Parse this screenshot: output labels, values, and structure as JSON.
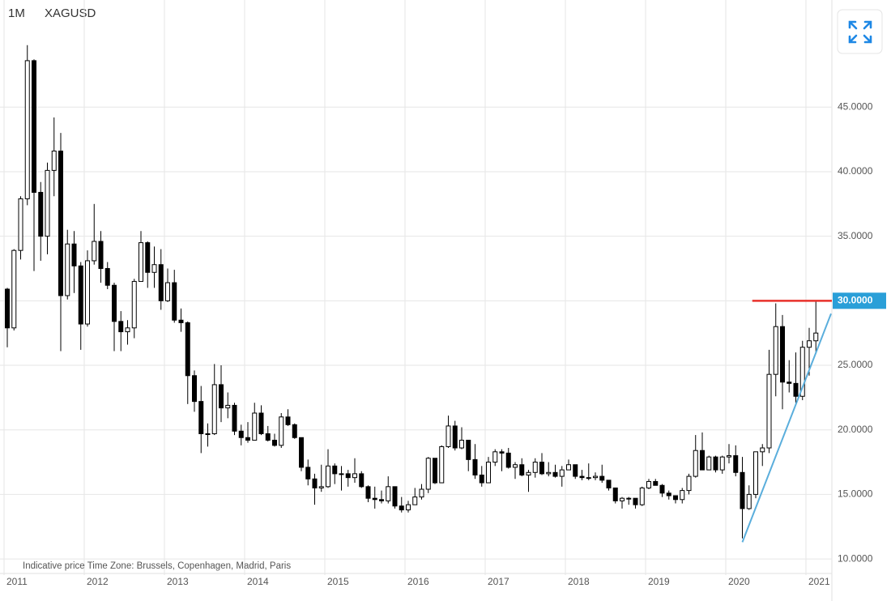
{
  "chart_data": {
    "type": "candlestick",
    "title": "1M",
    "symbol": "XAGUSD",
    "footnote": "Indicative price    Time Zone: Brussels, Copenhagen, Madrid, Paris",
    "ylim": [
      8.75,
      53.3
    ],
    "yticks": [
      {
        "value": 10,
        "label": "10.0000"
      },
      {
        "value": 15,
        "label": "15.0000"
      },
      {
        "value": 20,
        "label": "20.0000"
      },
      {
        "value": 25,
        "label": "25.0000"
      },
      {
        "value": 30,
        "label": "30.0000"
      },
      {
        "value": 35,
        "label": "35.0000"
      },
      {
        "value": 40,
        "label": "40.0000"
      },
      {
        "value": 45,
        "label": "45.0000"
      }
    ],
    "xticks": [
      2011,
      2012,
      2013,
      2014,
      2015,
      2016,
      2017,
      2018,
      2019,
      2020,
      2021
    ],
    "grid": true,
    "up_color": "#ffffff",
    "down_color": "#000000",
    "open": [
      30.9,
      27.9,
      33.9,
      37.9,
      48.6,
      38.4,
      35.0,
      40.1,
      41.6,
      30.4,
      34.4,
      32.7,
      28.2,
      33.1,
      34.6,
      32.5,
      31.2,
      28.4,
      27.6,
      27.9,
      31.5,
      34.5,
      32.2,
      32.8,
      30.0,
      31.4,
      28.5,
      28.3,
      24.2,
      22.2,
      19.7,
      19.7,
      23.5,
      21.7,
      21.9,
      19.9,
      19.4,
      19.2,
      21.3,
      19.7,
      19.2,
      18.8,
      21.0,
      20.4,
      19.4,
      17.1,
      16.2,
      15.5,
      15.6,
      17.2,
      16.6,
      16.6,
      16.3,
      16.6,
      15.6,
      14.7,
      14.6,
      14.5,
      15.6,
      14.1,
      13.8,
      14.2,
      14.8,
      15.4,
      17.8,
      15.9,
      18.7,
      20.3,
      18.6,
      19.2,
      17.7,
      16.5,
      15.9,
      17.5,
      18.3,
      18.2,
      17.1,
      17.3,
      16.5,
      16.7,
      17.5,
      16.6,
      16.7,
      16.4,
      16.9,
      17.3,
      16.4,
      16.3,
      16.3,
      16.4,
      16.1,
      15.5,
      14.5,
      14.7,
      14.7,
      14.2,
      15.5,
      16.0,
      15.7,
      15.1,
      14.9,
      14.6,
      15.3,
      16.4,
      18.4,
      16.9,
      17.9,
      16.9,
      17.9,
      18.0,
      16.7,
      13.9,
      15.0,
      18.3,
      18.6,
      24.3,
      28.0,
      23.7,
      23.6,
      22.6,
      26.4,
      26.9
    ],
    "high": [
      31.0,
      34.0,
      38.1,
      49.8,
      48.7,
      39.2,
      40.7,
      44.2,
      43.0,
      35.5,
      35.4,
      33.0,
      33.9,
      37.5,
      35.4,
      33.0,
      31.4,
      29.2,
      28.5,
      31.7,
      35.4,
      34.6,
      34.2,
      34.0,
      32.5,
      32.4,
      29.4,
      28.4,
      24.6,
      23.4,
      20.5,
      25.1,
      25.0,
      22.9,
      22.1,
      20.4,
      20.6,
      22.1,
      21.9,
      20.3,
      19.7,
      21.3,
      21.6,
      20.5,
      19.4,
      17.7,
      16.6,
      17.3,
      18.5,
      17.4,
      17.2,
      16.9,
      17.8,
      16.8,
      15.7,
      15.6,
      15.3,
      16.4,
      15.6,
      14.8,
      14.5,
      15.5,
      15.8,
      17.9,
      17.8,
      18.8,
      21.1,
      20.7,
      20.2,
      19.2,
      18.9,
      17.2,
      17.9,
      18.5,
      18.5,
      18.6,
      17.5,
      17.8,
      16.9,
      17.8,
      18.2,
      17.5,
      17.3,
      17.2,
      17.7,
      17.3,
      16.9,
      17.4,
      16.7,
      17.3,
      16.1,
      15.5,
      14.8,
      14.8,
      14.7,
      15.6,
      16.2,
      16.2,
      15.8,
      15.3,
      14.9,
      15.5,
      16.6,
      19.6,
      19.8,
      18.0,
      18.0,
      18.0,
      18.9,
      18.8,
      17.9,
      15.7,
      18.3,
      18.9,
      26.2,
      29.8,
      28.9,
      25.4,
      26.0,
      26.9,
      27.9,
      30.0
    ],
    "low": [
      26.4,
      27.7,
      33.2,
      37.4,
      32.3,
      33.1,
      33.6,
      38.1,
      26.1,
      30.1,
      30.6,
      26.2,
      28.0,
      32.8,
      31.4,
      30.9,
      26.1,
      26.1,
      26.6,
      27.1,
      31.5,
      31.0,
      31.0,
      29.3,
      29.9,
      28.3,
      27.6,
      22.0,
      21.4,
      18.2,
      18.7,
      19.6,
      20.6,
      20.9,
      19.6,
      18.8,
      19.0,
      19.2,
      19.6,
      19.1,
      18.7,
      18.6,
      20.3,
      19.3,
      16.8,
      15.7,
      14.2,
      15.2,
      15.5,
      15.8,
      15.3,
      15.6,
      15.9,
      15.5,
      14.4,
      13.9,
      14.3,
      14.3,
      13.9,
      13.6,
      13.6,
      14.2,
      14.6,
      15.1,
      15.8,
      15.9,
      18.6,
      18.4,
      18.5,
      16.8,
      16.2,
      15.6,
      15.9,
      17.2,
      16.8,
      17.0,
      16.2,
      16.4,
      15.2,
      16.3,
      16.5,
      16.4,
      16.3,
      15.6,
      16.9,
      16.2,
      16.1,
      16.1,
      16.1,
      15.9,
      15.3,
      14.3,
      13.9,
      14.2,
      13.9,
      14.1,
      15.4,
      15.7,
      14.8,
      14.6,
      14.3,
      14.3,
      15.0,
      16.3,
      16.9,
      16.9,
      16.7,
      16.6,
      17.4,
      16.4,
      11.6,
      13.8,
      14.7,
      17.2,
      18.2,
      22.6,
      21.6,
      22.9,
      21.9,
      22.3,
      24.2,
      25.9
    ],
    "close": [
      27.9,
      33.9,
      37.9,
      48.6,
      38.4,
      35.0,
      40.1,
      41.6,
      30.4,
      34.4,
      32.7,
      28.2,
      33.1,
      34.6,
      32.5,
      31.2,
      28.4,
      27.6,
      27.9,
      31.5,
      34.5,
      32.2,
      32.8,
      30.0,
      31.4,
      28.5,
      28.3,
      24.2,
      22.2,
      19.7,
      19.7,
      23.5,
      21.7,
      21.9,
      19.9,
      19.4,
      19.2,
      21.3,
      19.7,
      19.2,
      18.8,
      21.0,
      20.4,
      19.4,
      17.1,
      16.2,
      15.5,
      15.6,
      17.2,
      16.6,
      16.6,
      16.3,
      16.6,
      15.6,
      14.7,
      14.6,
      14.5,
      15.6,
      14.1,
      13.8,
      14.2,
      14.8,
      15.4,
      17.8,
      15.9,
      18.7,
      20.3,
      18.6,
      19.2,
      17.7,
      16.5,
      15.9,
      17.5,
      18.3,
      18.2,
      17.1,
      17.3,
      16.5,
      16.7,
      17.5,
      16.6,
      16.7,
      16.4,
      16.9,
      17.3,
      16.4,
      16.3,
      16.3,
      16.4,
      16.1,
      15.5,
      14.5,
      14.7,
      14.7,
      14.2,
      15.5,
      16.0,
      15.7,
      15.1,
      14.9,
      14.6,
      15.3,
      16.4,
      18.4,
      16.9,
      17.9,
      16.9,
      17.9,
      18.0,
      16.7,
      13.9,
      15.0,
      18.3,
      18.6,
      24.3,
      28.0,
      23.7,
      23.6,
      22.6,
      26.4,
      26.9,
      27.5
    ],
    "hline": {
      "value": 30,
      "label": "30.0000",
      "color": "#e8302a",
      "label_color": "#2a9fd8"
    },
    "trendline": {
      "from": 11.3,
      "to": 29.0,
      "color": "#5aaedc"
    }
  }
}
